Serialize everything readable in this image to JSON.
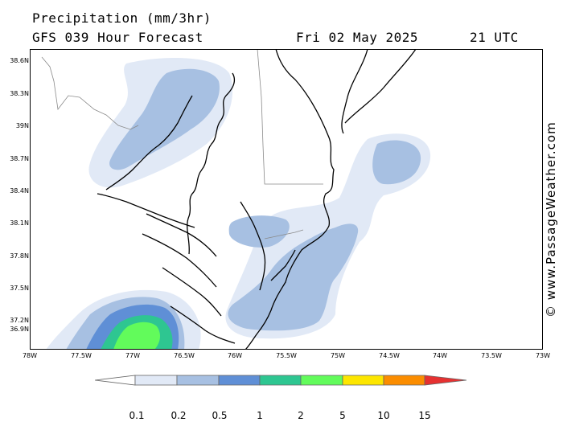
{
  "header": {
    "title": "Precipitation (mm/3hr)",
    "subtitle": "GFS 039 Hour Forecast",
    "date": "Fri 02 May 2025",
    "time": "21 UTC"
  },
  "axes": {
    "lat_labels": [
      "38.6N",
      "38.3N",
      "39N",
      "38.7N",
      "38.4N",
      "38.1N",
      "37.8N",
      "37.5N",
      "37.2N",
      "36.9N"
    ],
    "lon_labels": [
      "78W",
      "77.5W",
      "77W",
      "76.5W",
      "76W",
      "75.5W",
      "75W",
      "74.5W",
      "74W",
      "73.5W",
      "73W"
    ]
  },
  "watermark": "© www.PassageWeather.com",
  "legend": {
    "labels": [
      "0.1",
      "0.2",
      "0.5",
      "1",
      "2",
      "5",
      "10",
      "15"
    ],
    "colors": [
      "#ffffff",
      "#e1e9f6",
      "#a7c0e2",
      "#5f8fd6",
      "#2ec691",
      "#62fb5b",
      "#fde600",
      "#fb8d00",
      "#e63131"
    ]
  },
  "palette": {
    "land_line": "#000000",
    "border_line": "#8a8a8a"
  }
}
